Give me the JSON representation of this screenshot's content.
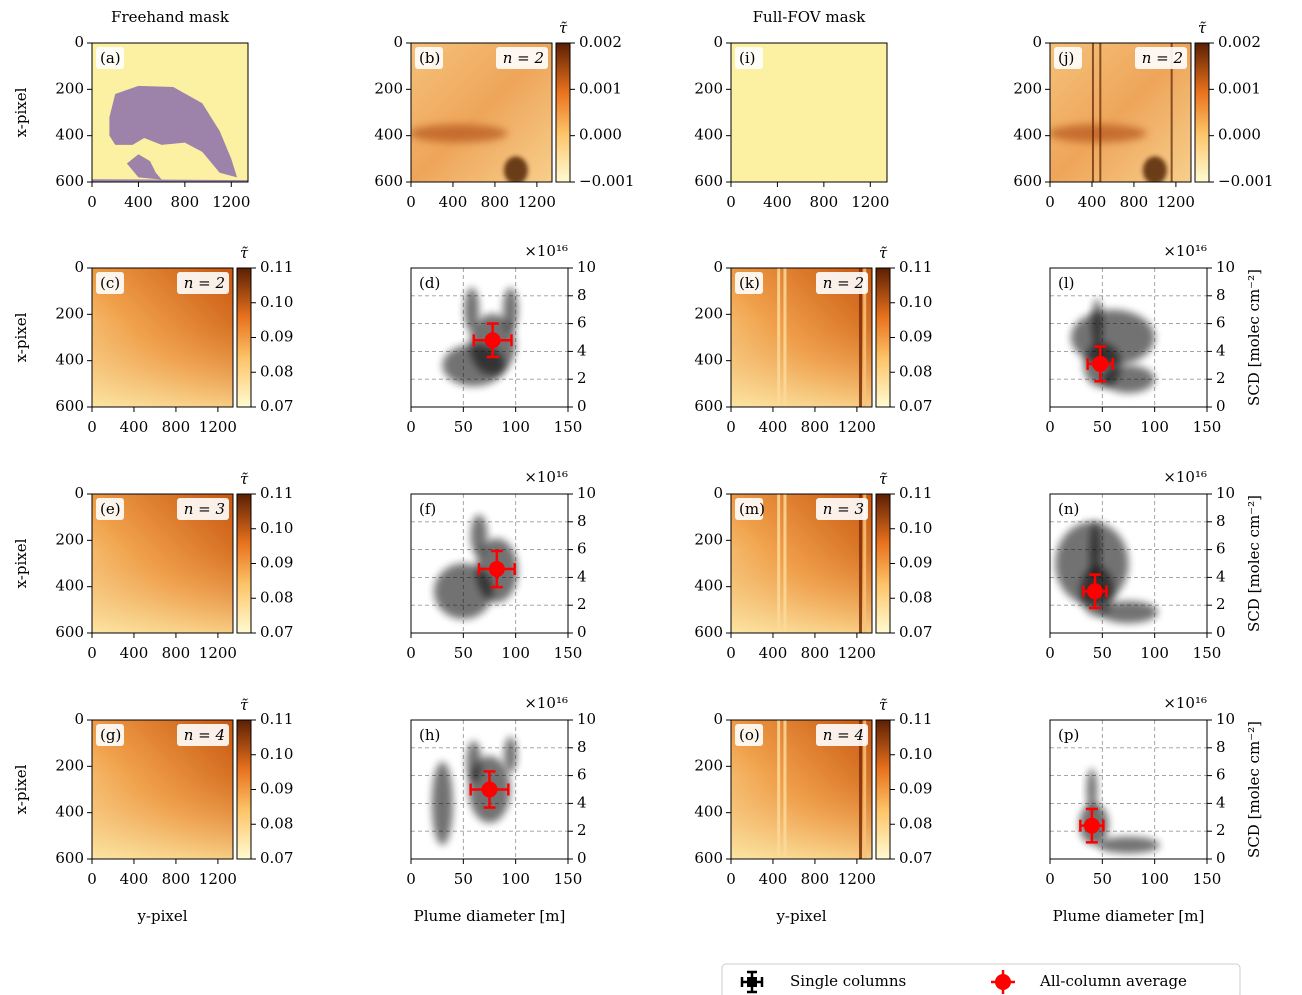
{
  "chart_data": [
    {
      "type": "image",
      "label": "(a)",
      "title": "Freehand mask",
      "ylabel": "x-pixel",
      "xlim": [
        0,
        1344
      ],
      "xticks": [
        0,
        400,
        800,
        1200
      ],
      "ylim": [
        600,
        0
      ],
      "yticks": [
        0,
        200,
        400,
        600
      ]
    },
    {
      "type": "image",
      "label": "(b)",
      "annotation": "n = 2",
      "xlim": [
        0,
        1344
      ],
      "xticks": [
        0,
        400,
        800,
        1200
      ],
      "ylim": [
        600,
        0
      ],
      "yticks": [
        0,
        200,
        400,
        600
      ],
      "colorbar": {
        "label": "τ̃",
        "lim": [
          -0.001,
          0.002
        ],
        "ticks": [
          0.002,
          0.001,
          {
            "value": 0,
            "label": "0.000"
          },
          {
            "value": -0.001,
            "label": "−0.001"
          }
        ]
      }
    },
    {
      "type": "image",
      "label": "(i)",
      "title": "Full-FOV mask",
      "xlim": [
        0,
        1344
      ],
      "xticks": [
        0,
        400,
        800,
        1200
      ],
      "ylim": [
        600,
        0
      ],
      "yticks": [
        0,
        200,
        400,
        600
      ]
    },
    {
      "type": "image",
      "label": "(j)",
      "annotation": "n = 2",
      "xlim": [
        0,
        1344
      ],
      "xticks": [
        0,
        400,
        800,
        1200
      ],
      "ylim": [
        600,
        0
      ],
      "yticks": [
        0,
        200,
        400,
        600
      ],
      "colorbar": {
        "label": "τ̃",
        "lim": [
          -0.001,
          0.002
        ],
        "ticks": [
          0.002,
          0.001,
          {
            "value": 0,
            "label": "0.000"
          },
          {
            "value": -0.001,
            "label": "−0.001"
          }
        ]
      }
    },
    {
      "type": "image",
      "label": "(c)",
      "annotation": "n = 2",
      "ylabel": "x-pixel",
      "xlim": [
        0,
        1344
      ],
      "xticks": [
        0,
        400,
        800,
        1200
      ],
      "ylim": [
        600,
        0
      ],
      "yticks": [
        0,
        200,
        400,
        600
      ],
      "colorbar": {
        "label": "τ̃",
        "lim": [
          0.07,
          0.11
        ],
        "ticks": [
          0.11,
          {
            "value": 0.1,
            "label": "0.10"
          },
          0.09,
          0.08,
          0.07
        ]
      }
    },
    {
      "type": "scatter",
      "label": "(d)",
      "offset_text": "×10¹⁶",
      "grid": true,
      "xlim": [
        0,
        150
      ],
      "xticks": [
        0,
        50,
        100,
        150
      ],
      "ylim": [
        0,
        10
      ],
      "yticks": [
        0,
        2,
        4,
        6,
        8,
        10
      ],
      "color": "#ff0000",
      "x": [
        78
      ],
      "values": [
        4.8
      ],
      "xerr": [
        18
      ],
      "yerr": [
        1.2
      ]
    },
    {
      "type": "image",
      "label": "(k)",
      "annotation": "n = 2",
      "xlim": [
        0,
        1344
      ],
      "xticks": [
        0,
        400,
        800,
        1200
      ],
      "ylim": [
        600,
        0
      ],
      "yticks": [
        0,
        200,
        400,
        600
      ],
      "colorbar": {
        "label": "τ̃",
        "lim": [
          0.07,
          0.11
        ],
        "ticks": [
          0.11,
          {
            "value": 0.1,
            "label": "0.10"
          },
          0.09,
          0.08,
          0.07
        ]
      }
    },
    {
      "type": "scatter",
      "label": "(l)",
      "offset_text": "×10¹⁶",
      "ylabel": "SCD [molec cm⁻²]",
      "grid": true,
      "xlim": [
        0,
        150
      ],
      "xticks": [
        0,
        50,
        100,
        150
      ],
      "ylim": [
        0,
        10
      ],
      "yticks": [
        0,
        2,
        4,
        6,
        8,
        10
      ],
      "color": "#ff0000",
      "x": [
        48
      ],
      "values": [
        3.1
      ],
      "xerr": [
        12
      ],
      "yerr": [
        1.25
      ]
    },
    {
      "type": "image",
      "label": "(e)",
      "annotation": "n = 3",
      "ylabel": "x-pixel",
      "xlim": [
        0,
        1344
      ],
      "xticks": [
        0,
        400,
        800,
        1200
      ],
      "ylim": [
        600,
        0
      ],
      "yticks": [
        0,
        200,
        400,
        600
      ],
      "colorbar": {
        "label": "τ̃",
        "lim": [
          0.07,
          0.11
        ],
        "ticks": [
          0.11,
          {
            "value": 0.1,
            "label": "0.10"
          },
          0.09,
          0.08,
          0.07
        ]
      }
    },
    {
      "type": "scatter",
      "label": "(f)",
      "offset_text": "×10¹⁶",
      "grid": true,
      "xlim": [
        0,
        150
      ],
      "xticks": [
        0,
        50,
        100,
        150
      ],
      "ylim": [
        0,
        10
      ],
      "yticks": [
        0,
        2,
        4,
        6,
        8,
        10
      ],
      "color": "#ff0000",
      "x": [
        82
      ],
      "values": [
        4.6
      ],
      "xerr": [
        17
      ],
      "yerr": [
        1.3
      ]
    },
    {
      "type": "image",
      "label": "(m)",
      "annotation": "n = 3",
      "xlim": [
        0,
        1344
      ],
      "xticks": [
        0,
        400,
        800,
        1200
      ],
      "ylim": [
        600,
        0
      ],
      "yticks": [
        0,
        200,
        400,
        600
      ],
      "colorbar": {
        "label": "τ̃",
        "lim": [
          0.07,
          0.11
        ],
        "ticks": [
          0.11,
          {
            "value": 0.1,
            "label": "0.10"
          },
          0.09,
          0.08,
          0.07
        ]
      }
    },
    {
      "type": "scatter",
      "label": "(n)",
      "offset_text": "×10¹⁶",
      "ylabel": "SCD [molec cm⁻²]",
      "grid": true,
      "xlim": [
        0,
        150
      ],
      "xticks": [
        0,
        50,
        100,
        150
      ],
      "ylim": [
        0,
        10
      ],
      "yticks": [
        0,
        2,
        4,
        6,
        8,
        10
      ],
      "color": "#ff0000",
      "x": [
        43
      ],
      "values": [
        3.0
      ],
      "xerr": [
        11
      ],
      "yerr": [
        1.2
      ]
    },
    {
      "type": "image",
      "label": "(g)",
      "annotation": "n = 4",
      "ylabel": "x-pixel",
      "xlabel": "y-pixel",
      "xlim": [
        0,
        1344
      ],
      "xticks": [
        0,
        400,
        800,
        1200
      ],
      "ylim": [
        600,
        0
      ],
      "yticks": [
        0,
        200,
        400,
        600
      ],
      "colorbar": {
        "label": "τ̃",
        "lim": [
          0.07,
          0.11
        ],
        "ticks": [
          0.11,
          {
            "value": 0.1,
            "label": "0.10"
          },
          0.09,
          0.08,
          0.07
        ]
      }
    },
    {
      "type": "scatter",
      "label": "(h)",
      "offset_text": "×10¹⁶",
      "xlabel": "Plume diameter [m]",
      "grid": true,
      "xlim": [
        0,
        150
      ],
      "xticks": [
        0,
        50,
        100,
        150
      ],
      "ylim": [
        0,
        10
      ],
      "yticks": [
        0,
        2,
        4,
        6,
        8,
        10
      ],
      "color": "#ff0000",
      "x": [
        75
      ],
      "values": [
        5.0
      ],
      "xerr": [
        18
      ],
      "yerr": [
        1.3
      ]
    },
    {
      "type": "image",
      "label": "(o)",
      "annotation": "n = 4",
      "xlabel": "y-pixel",
      "xlim": [
        0,
        1344
      ],
      "xticks": [
        0,
        400,
        800,
        1200
      ],
      "ylim": [
        600,
        0
      ],
      "yticks": [
        0,
        200,
        400,
        600
      ],
      "colorbar": {
        "label": "τ̃",
        "lim": [
          0.07,
          0.11
        ],
        "ticks": [
          0.11,
          {
            "value": 0.1,
            "label": "0.10"
          },
          0.09,
          0.08,
          0.07
        ]
      }
    },
    {
      "type": "scatter",
      "label": "(p)",
      "offset_text": "×10¹⁶",
      "ylabel": "SCD [molec cm⁻²]",
      "xlabel": "Plume diameter [m]",
      "grid": true,
      "xlim": [
        0,
        150
      ],
      "xticks": [
        0,
        50,
        100,
        150
      ],
      "ylim": [
        0,
        10
      ],
      "yticks": [
        0,
        2,
        4,
        6,
        8,
        10
      ],
      "color": "#ff0000",
      "x": [
        40
      ],
      "values": [
        2.4
      ],
      "xerr": [
        11
      ],
      "yerr": [
        1.2
      ]
    }
  ],
  "legend": [
    {
      "name": "Single columns",
      "color": "#000000"
    },
    {
      "name": "All-column average",
      "color": "#ff0000"
    }
  ]
}
